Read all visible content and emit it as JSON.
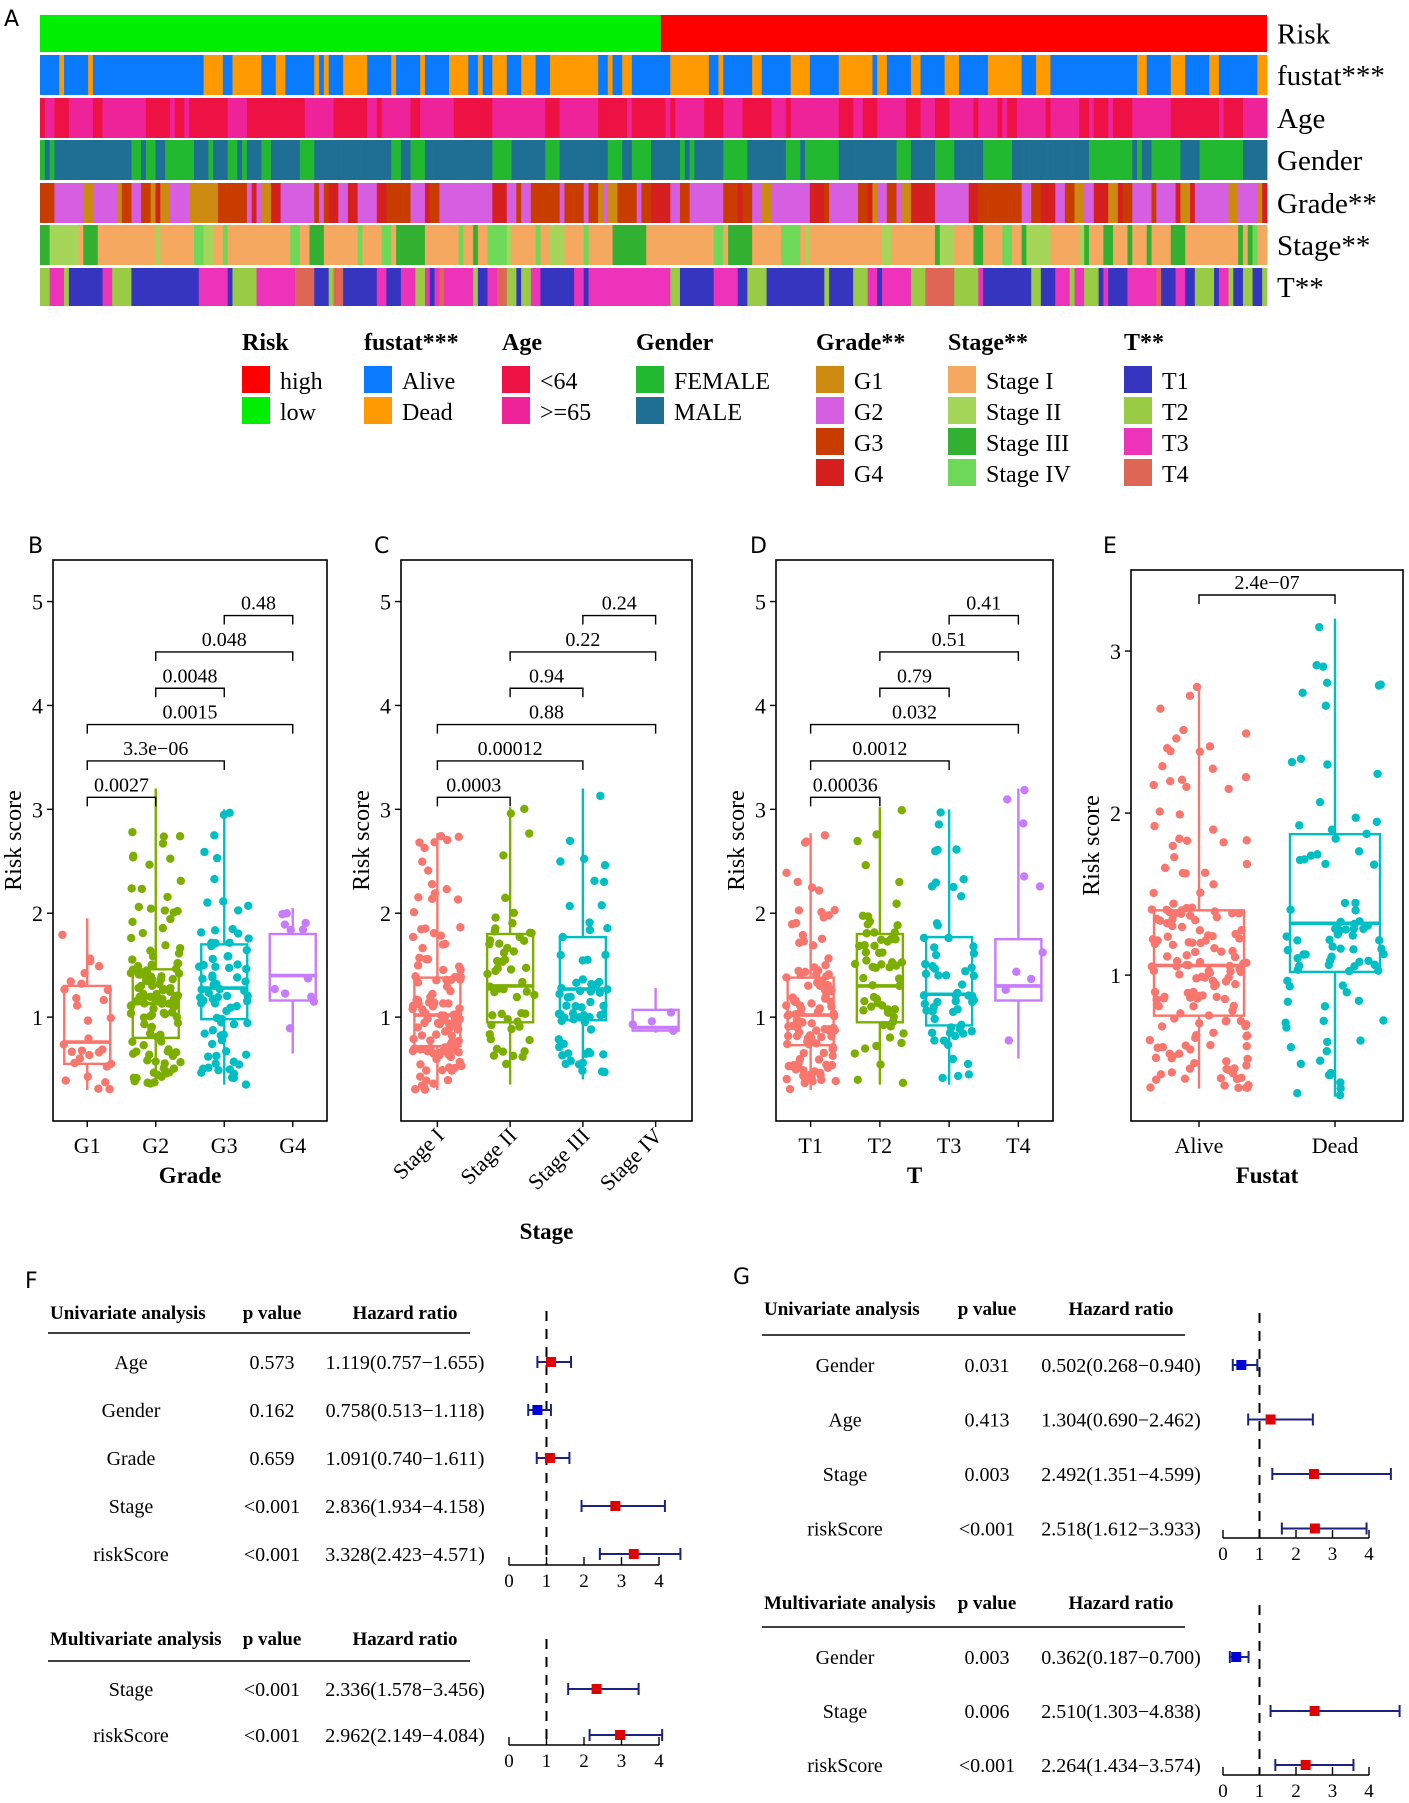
{
  "panel_labels": {
    "A": "A",
    "B": "B",
    "C": "C",
    "D": "D",
    "E": "E",
    "F": "F",
    "G": "G"
  },
  "colors": {
    "high": "#ff0000",
    "low": "#00ee00",
    "alive": "#0a7bff",
    "dead": "#ff9900",
    "age_lt64": "#ee1144",
    "age_ge65": "#ee2299",
    "female": "#22b830",
    "male": "#1f6e93",
    "g1": "#cc8a11",
    "g2": "#d65ee0",
    "g3": "#c83c00",
    "g4": "#d62020",
    "stage1": "#f5a860",
    "stage2": "#a5d65a",
    "stage3": "#32b032",
    "stage4": "#6ed958",
    "t1": "#3535c0",
    "t2": "#99cc44",
    "t3": "#ee33bb",
    "t4": "#dd6655",
    "box_red": "#f8766d",
    "box_green": "#7cae00",
    "box_cyan": "#00bfc4",
    "box_purple": "#c77cff",
    "forest_red": "#e00000",
    "forest_blue": "#0000dd",
    "forest_line": "#1a237e"
  },
  "heatmap": {
    "tracks": [
      "Risk",
      "fustat***",
      "Age",
      "Gender",
      "Grade**",
      "Stage**",
      "T**"
    ],
    "legends": [
      {
        "title": "Risk",
        "items": [
          {
            "label": "high",
            "color": "#ff0000"
          },
          {
            "label": "low",
            "color": "#00ee00"
          }
        ]
      },
      {
        "title": "fustat***",
        "items": [
          {
            "label": "Alive",
            "color": "#0a7bff"
          },
          {
            "label": "Dead",
            "color": "#ff9900"
          }
        ]
      },
      {
        "title": "Age",
        "items": [
          {
            "label": "<64",
            "color": "#ee1144"
          },
          {
            "label": ">=65",
            "color": "#ee2299"
          }
        ]
      },
      {
        "title": "Gender",
        "items": [
          {
            "label": "FEMALE",
            "color": "#22b830"
          },
          {
            "label": "MALE",
            "color": "#1f6e93"
          }
        ]
      },
      {
        "title": "Grade**",
        "items": [
          {
            "label": "G1",
            "color": "#cc8a11"
          },
          {
            "label": "G2",
            "color": "#d65ee0"
          },
          {
            "label": "G3",
            "color": "#c83c00"
          },
          {
            "label": "G4",
            "color": "#d62020"
          }
        ]
      },
      {
        "title": "Stage**",
        "items": [
          {
            "label": "Stage I",
            "color": "#f5a860"
          },
          {
            "label": "Stage II",
            "color": "#a5d65a"
          },
          {
            "label": "Stage III",
            "color": "#32b032"
          },
          {
            "label": "Stage IV",
            "color": "#6ed958"
          }
        ]
      },
      {
        "title": "T**",
        "items": [
          {
            "label": "T1",
            "color": "#3535c0"
          },
          {
            "label": "T2",
            "color": "#99cc44"
          },
          {
            "label": "T3",
            "color": "#ee33bb"
          },
          {
            "label": "T4",
            "color": "#dd6655"
          }
        ]
      }
    ]
  },
  "chart_data": [
    {
      "id": "B",
      "type": "box",
      "xlabel": "Grade",
      "ylabel": "Risk score",
      "ylim": [
        0,
        5.4
      ],
      "yticks": [
        1,
        2,
        3,
        4,
        5
      ],
      "categories": [
        "G1",
        "G2",
        "G3",
        "G4"
      ],
      "boxes": [
        {
          "min": 0.3,
          "q1": 0.55,
          "median": 0.76,
          "q3": 1.3,
          "max": 1.95,
          "n": 30
        },
        {
          "min": 0.35,
          "q1": 0.8,
          "median": 1.13,
          "q3": 1.46,
          "max": 3.2,
          "n": 120
        },
        {
          "min": 0.35,
          "q1": 0.98,
          "median": 1.28,
          "q3": 1.7,
          "max": 3.0,
          "n": 80
        },
        {
          "min": 0.65,
          "q1": 1.16,
          "median": 1.4,
          "q3": 1.8,
          "max": 2.05,
          "n": 12
        }
      ],
      "comparisons": [
        {
          "a": 0,
          "b": 1,
          "label": "0.0027"
        },
        {
          "a": 0,
          "b": 2,
          "label": "3.3e−06"
        },
        {
          "a": 0,
          "b": 3,
          "label": "0.0015"
        },
        {
          "a": 1,
          "b": 2,
          "label": "0.0048"
        },
        {
          "a": 1,
          "b": 3,
          "label": "0.048"
        },
        {
          "a": 2,
          "b": 3,
          "label": "0.48"
        }
      ]
    },
    {
      "id": "C",
      "type": "box",
      "xlabel": "Stage",
      "ylabel": "Risk score",
      "ylim": [
        0,
        5.4
      ],
      "yticks": [
        1,
        2,
        3,
        4,
        5
      ],
      "rotate_ticks": true,
      "categories": [
        "Stage I",
        "Stage II",
        "Stage III",
        "Stage IV"
      ],
      "boxes": [
        {
          "min": 0.3,
          "q1": 0.72,
          "median": 1.02,
          "q3": 1.38,
          "max": 2.77,
          "n": 120
        },
        {
          "min": 0.35,
          "q1": 0.95,
          "median": 1.3,
          "q3": 1.8,
          "max": 3.02,
          "n": 55
        },
        {
          "min": 0.4,
          "q1": 0.97,
          "median": 1.27,
          "q3": 1.77,
          "max": 3.2,
          "n": 65
        },
        {
          "min": 0.85,
          "q1": 0.87,
          "median": 0.9,
          "q3": 1.07,
          "max": 1.28,
          "n": 4
        }
      ],
      "comparisons": [
        {
          "a": 0,
          "b": 1,
          "label": "0.0003"
        },
        {
          "a": 0,
          "b": 2,
          "label": "0.00012"
        },
        {
          "a": 0,
          "b": 3,
          "label": "0.88"
        },
        {
          "a": 1,
          "b": 2,
          "label": "0.94"
        },
        {
          "a": 1,
          "b": 3,
          "label": "0.22"
        },
        {
          "a": 2,
          "b": 3,
          "label": "0.24"
        }
      ]
    },
    {
      "id": "D",
      "type": "box",
      "xlabel": "T",
      "ylabel": "Risk score",
      "ylim": [
        0,
        5.4
      ],
      "yticks": [
        1,
        2,
        3,
        4,
        5
      ],
      "categories": [
        "T1",
        "T2",
        "T3",
        "T4"
      ],
      "boxes": [
        {
          "min": 0.3,
          "q1": 0.73,
          "median": 1.02,
          "q3": 1.38,
          "max": 2.77,
          "n": 120
        },
        {
          "min": 0.35,
          "q1": 0.95,
          "median": 1.3,
          "q3": 1.8,
          "max": 3.02,
          "n": 60
        },
        {
          "min": 0.35,
          "q1": 0.92,
          "median": 1.22,
          "q3": 1.77,
          "max": 3.0,
          "n": 60
        },
        {
          "min": 0.6,
          "q1": 1.16,
          "median": 1.3,
          "q3": 1.75,
          "max": 3.2,
          "n": 10
        }
      ],
      "comparisons": [
        {
          "a": 0,
          "b": 1,
          "label": "0.00036"
        },
        {
          "a": 0,
          "b": 2,
          "label": "0.0012"
        },
        {
          "a": 0,
          "b": 3,
          "label": "0.032"
        },
        {
          "a": 1,
          "b": 2,
          "label": "0.79"
        },
        {
          "a": 1,
          "b": 3,
          "label": "0.51"
        },
        {
          "a": 2,
          "b": 3,
          "label": "0.41"
        }
      ]
    },
    {
      "id": "E",
      "type": "box",
      "xlabel": "Fustat",
      "ylabel": "Risk score",
      "ylim": [
        0.1,
        3.5
      ],
      "yticks": [
        1,
        2,
        3
      ],
      "categories": [
        "Alive",
        "Dead"
      ],
      "boxes": [
        {
          "min": 0.3,
          "q1": 0.75,
          "median": 1.06,
          "q3": 1.4,
          "max": 2.78,
          "n": 170
        },
        {
          "min": 0.25,
          "q1": 1.02,
          "median": 1.32,
          "q3": 1.87,
          "max": 3.2,
          "n": 90
        }
      ],
      "comparisons": [
        {
          "a": 0,
          "b": 1,
          "label": "2.4e−07"
        }
      ]
    },
    {
      "id": "F",
      "type": "forest",
      "xlim": [
        0,
        4
      ],
      "xticks": [
        0,
        1,
        2,
        3,
        4
      ],
      "sections": [
        {
          "title": "Univariate analysis",
          "p_header": "p value",
          "hr_header": "Hazard ratio",
          "rows": [
            {
              "name": "Age",
              "p": "0.573",
              "hr_text": "1.119(0.757−1.655)",
              "hr": 1.119,
              "lo": 0.757,
              "hi": 1.655
            },
            {
              "name": "Gender",
              "p": "0.162",
              "hr_text": "0.758(0.513−1.118)",
              "hr": 0.758,
              "lo": 0.513,
              "hi": 1.118
            },
            {
              "name": "Grade",
              "p": "0.659",
              "hr_text": "1.091(0.740−1.611)",
              "hr": 1.091,
              "lo": 0.74,
              "hi": 1.611
            },
            {
              "name": "Stage",
              "p": "<0.001",
              "hr_text": "2.836(1.934−4.158)",
              "hr": 2.836,
              "lo": 1.934,
              "hi": 4.158
            },
            {
              "name": "riskScore",
              "p": "<0.001",
              "hr_text": "3.328(2.423−4.571)",
              "hr": 3.328,
              "lo": 2.423,
              "hi": 4.571
            }
          ]
        },
        {
          "title": "Multivariate analysis",
          "p_header": "p value",
          "hr_header": "Hazard ratio",
          "rows": [
            {
              "name": "Stage",
              "p": "<0.001",
              "hr_text": "2.336(1.578−3.456)",
              "hr": 2.336,
              "lo": 1.578,
              "hi": 3.456
            },
            {
              "name": "riskScore",
              "p": "<0.001",
              "hr_text": "2.962(2.149−4.084)",
              "hr": 2.962,
              "lo": 2.149,
              "hi": 4.084
            }
          ]
        }
      ]
    },
    {
      "id": "G",
      "type": "forest",
      "xlim": [
        0,
        4
      ],
      "xticks": [
        0,
        1,
        2,
        3,
        4
      ],
      "sections": [
        {
          "title": "Univariate analysis",
          "p_header": "p value",
          "hr_header": "Hazard ratio",
          "rows": [
            {
              "name": "Gender",
              "p": "0.031",
              "hr_text": "0.502(0.268−0.940)",
              "hr": 0.502,
              "lo": 0.268,
              "hi": 0.94
            },
            {
              "name": "Age",
              "p": "0.413",
              "hr_text": "1.304(0.690−2.462)",
              "hr": 1.304,
              "lo": 0.69,
              "hi": 2.462
            },
            {
              "name": "Stage",
              "p": "0.003",
              "hr_text": "2.492(1.351−4.599)",
              "hr": 2.492,
              "lo": 1.351,
              "hi": 4.599
            },
            {
              "name": "riskScore",
              "p": "<0.001",
              "hr_text": "2.518(1.612−3.933)",
              "hr": 2.518,
              "lo": 1.612,
              "hi": 3.933
            }
          ]
        },
        {
          "title": "Multivariate analysis",
          "p_header": "p value",
          "hr_header": "Hazard ratio",
          "rows": [
            {
              "name": "Gender",
              "p": "0.003",
              "hr_text": "0.362(0.187−0.700)",
              "hr": 0.362,
              "lo": 0.187,
              "hi": 0.7
            },
            {
              "name": "Stage",
              "p": "0.006",
              "hr_text": "2.510(1.303−4.838)",
              "hr": 2.51,
              "lo": 1.303,
              "hi": 4.838
            },
            {
              "name": "riskScore",
              "p": "<0.001",
              "hr_text": "2.264(1.434−3.574)",
              "hr": 2.264,
              "lo": 1.434,
              "hi": 3.574
            }
          ]
        }
      ]
    }
  ]
}
